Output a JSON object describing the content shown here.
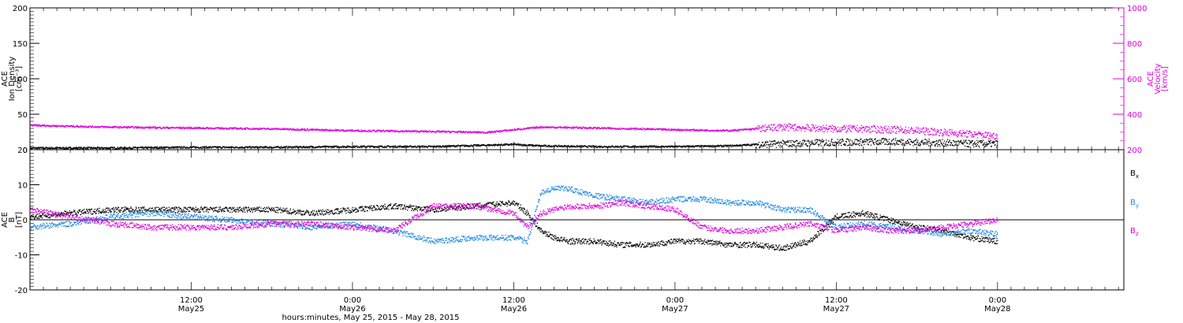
{
  "colors": {
    "black": "#000000",
    "magenta": "#dd00dd",
    "blue": "#1e88e5"
  },
  "x_axis": {
    "tick_labels": [
      [
        "12:00",
        "May25"
      ],
      [
        "0:00",
        "May26"
      ],
      [
        "12:00",
        "May26"
      ],
      [
        "0:00",
        "May27"
      ],
      [
        "12:00",
        "May27"
      ],
      [
        "0:00",
        "May28"
      ]
    ],
    "title": "hours:minutes, May 25, 2015 - May 28, 2015"
  },
  "chart_data": [
    {
      "type": "scatter",
      "panel": "top",
      "title": "",
      "left_axis": {
        "label_lines": [
          "ACE",
          "Ion Density",
          "[cm⁻³]"
        ],
        "ylim": [
          0,
          200
        ],
        "ticks": [
          0,
          50,
          100,
          150,
          200
        ]
      },
      "right_axis": {
        "label_lines": [
          "ACE",
          "Velocity",
          "[km/s]"
        ],
        "ylim": [
          200,
          1000
        ],
        "ticks": [
          200,
          400,
          600,
          800,
          1000
        ]
      },
      "time_range_hours": [
        0,
        72
      ],
      "series": [
        {
          "axis": "left",
          "x_hours": [
            0,
            6,
            12,
            18,
            24,
            30,
            36,
            38,
            42,
            48,
            52,
            54,
            56,
            58,
            60,
            64,
            68,
            70,
            72
          ],
          "values": [
            3,
            3,
            4,
            4,
            5,
            5,
            8,
            6,
            5,
            5,
            6,
            8,
            9,
            10,
            11,
            12,
            10,
            9,
            9
          ]
        },
        {
          "axis": "right",
          "x_hours": [
            0,
            6,
            12,
            18,
            24,
            30,
            34,
            36,
            38,
            42,
            48,
            52,
            54,
            56,
            58,
            60,
            62,
            64,
            66,
            68,
            70,
            72
          ],
          "values": [
            340,
            330,
            325,
            320,
            310,
            305,
            300,
            315,
            330,
            325,
            315,
            310,
            320,
            330,
            325,
            320,
            320,
            315,
            310,
            300,
            290,
            280
          ]
        }
      ]
    },
    {
      "type": "line",
      "panel": "bottom",
      "title": "",
      "left_axis": {
        "label_lines": [
          "ACE",
          "B",
          "[nT]"
        ],
        "ylim": [
          -20,
          20
        ],
        "ticks": [
          -20,
          -10,
          0,
          10,
          20
        ]
      },
      "time_range_hours": [
        0,
        72
      ],
      "series": [
        {
          "name": "Bx",
          "x_hours": [
            0,
            3,
            6,
            9,
            12,
            15,
            18,
            21,
            24,
            27,
            30,
            33,
            36,
            37,
            38,
            39,
            40,
            42,
            44,
            46,
            48,
            50,
            52,
            54,
            56,
            58,
            60,
            62,
            64,
            66,
            68,
            70,
            72
          ],
          "values": [
            1,
            2,
            3,
            3,
            3,
            3,
            3,
            2,
            3,
            4,
            3,
            4,
            5,
            2,
            -3,
            -5,
            -6,
            -6,
            -7,
            -7,
            -6,
            -6,
            -7,
            -7,
            -8,
            -6,
            1,
            2,
            0,
            -2,
            -3,
            -5,
            -6
          ]
        },
        {
          "name": "By",
          "x_hours": [
            0,
            3,
            6,
            9,
            12,
            15,
            18,
            21,
            24,
            27,
            30,
            33,
            36,
            37,
            38,
            39,
            40,
            42,
            44,
            46,
            48,
            50,
            52,
            54,
            56,
            58,
            60,
            62,
            64,
            66,
            68,
            70,
            72
          ],
          "values": [
            -2,
            -1,
            1,
            2,
            1,
            0,
            -1,
            -2,
            -1,
            -3,
            -6,
            -5,
            -5,
            -6,
            8,
            9,
            9,
            7,
            6,
            5,
            6,
            6,
            5,
            5,
            3,
            3,
            -2,
            -1,
            -2,
            -3,
            -4,
            -3,
            -4
          ]
        },
        {
          "name": "Bz",
          "x_hours": [
            0,
            3,
            6,
            9,
            12,
            15,
            18,
            21,
            24,
            27,
            30,
            33,
            36,
            37,
            38,
            39,
            40,
            42,
            44,
            46,
            48,
            50,
            52,
            54,
            56,
            58,
            60,
            62,
            64,
            66,
            68,
            70,
            72
          ],
          "values": [
            3,
            1,
            -1,
            -2,
            -2,
            -2,
            -1,
            -1,
            -2,
            -3,
            4,
            4,
            2,
            -2,
            2,
            3,
            4,
            4,
            5,
            4,
            3,
            -2,
            -3,
            -3,
            -2,
            -1,
            -3,
            -2,
            -3,
            -3,
            -2,
            -1,
            0
          ]
        }
      ]
    }
  ]
}
